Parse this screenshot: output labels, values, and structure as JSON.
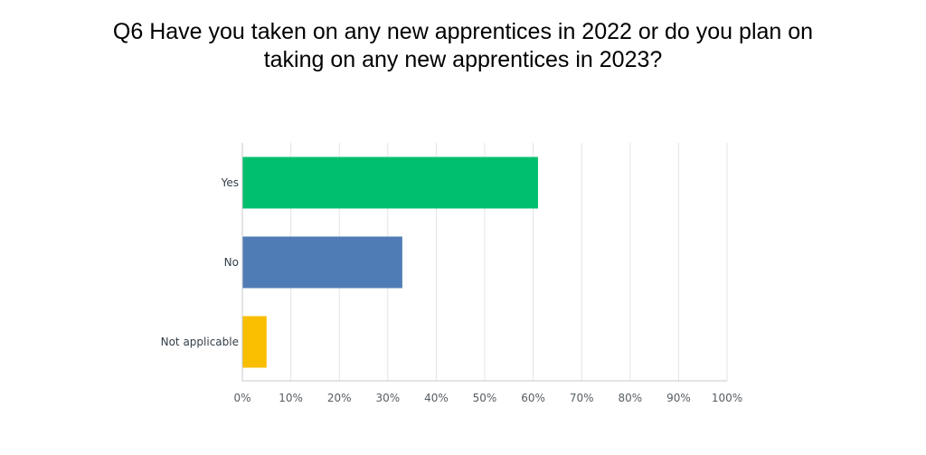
{
  "chart_data": {
    "type": "bar",
    "orientation": "horizontal",
    "title_lines": [
      "Q6 Have you taken on any new apprentices in 2022 or do you plan on",
      "taking on any new apprentices in 2023?"
    ],
    "categories": [
      "Yes",
      "No",
      "Not applicable"
    ],
    "values": [
      61,
      33,
      5
    ],
    "colors": [
      "#00bf6f",
      "#507cb6",
      "#f9be00"
    ],
    "xlim": [
      0,
      100
    ],
    "x_ticks": [
      0,
      10,
      20,
      30,
      40,
      50,
      60,
      70,
      80,
      90,
      100
    ],
    "x_tick_labels": [
      "0%",
      "10%",
      "20%",
      "30%",
      "40%",
      "50%",
      "60%",
      "70%",
      "80%",
      "90%",
      "100%"
    ],
    "grid": true
  }
}
